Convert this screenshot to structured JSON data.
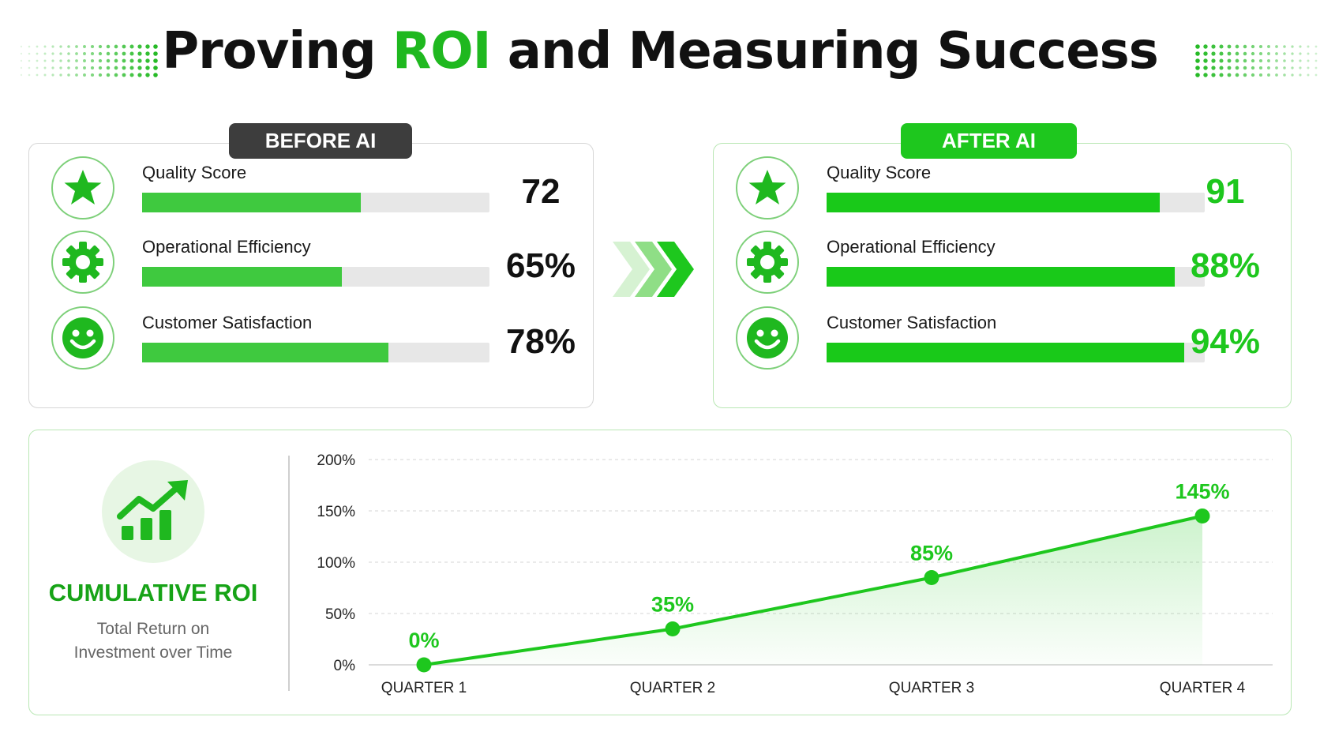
{
  "title": {
    "prefix": "Proving ",
    "accent": "ROI",
    "suffix": " and Measuring Success"
  },
  "before": {
    "badge": "BEFORE AI",
    "metrics": [
      {
        "icon": "star-icon",
        "label": "Quality Score",
        "value": "72",
        "fill": 0.63
      },
      {
        "icon": "gear-icon",
        "label": "Operational Efficiency",
        "value": "65%",
        "fill": 0.575
      },
      {
        "icon": "smiley-icon",
        "label": "Customer Satisfaction",
        "value": "78%",
        "fill": 0.71
      }
    ]
  },
  "after": {
    "badge": "AFTER AI",
    "metrics": [
      {
        "icon": "star-icon",
        "label": "Quality Score",
        "value": "91",
        "fill": 0.88
      },
      {
        "icon": "gear-icon",
        "label": "Operational Efficiency",
        "value": "88%",
        "fill": 0.92
      },
      {
        "icon": "smiley-icon",
        "label": "Customer Satisfaction",
        "value": "94%",
        "fill": 0.945
      }
    ]
  },
  "roi": {
    "title": "CUMULATIVE ROI",
    "subtitle": "Total Return on Investment over Time",
    "icon": "growth-chart-icon"
  },
  "colors": {
    "accent": "#1ec71e",
    "dark_badge": "#3d3d3d",
    "accent_text": "#17a317"
  },
  "chart_data": {
    "type": "area",
    "categories": [
      "QUARTER 1",
      "QUARTER 2",
      "QUARTER 3",
      "QUARTER 4"
    ],
    "values": [
      0,
      35,
      85,
      145
    ],
    "data_labels": [
      "0%",
      "35%",
      "85%",
      "145%"
    ],
    "y_ticks": [
      "0%",
      "50%",
      "100%",
      "150%",
      "200%"
    ],
    "ylim": [
      0,
      200
    ],
    "grid": true,
    "color": "#1ec71e"
  }
}
